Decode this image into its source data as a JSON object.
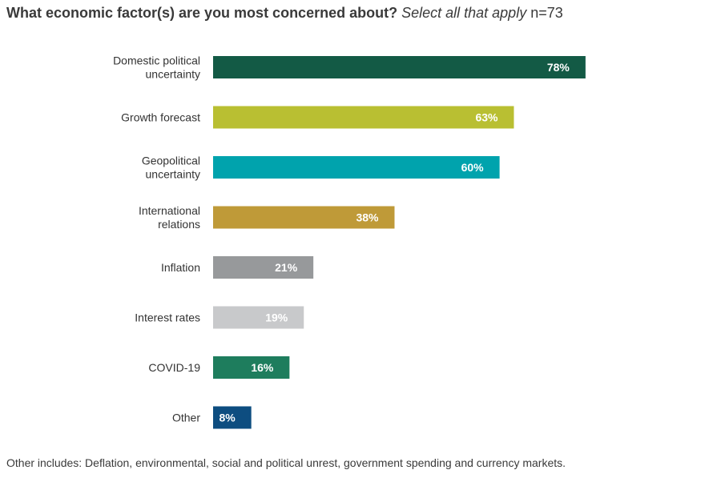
{
  "title": {
    "question": "What economic factor(s) are you most concerned about?",
    "instruction": "Select all that apply",
    "sample": "n=73"
  },
  "footnote": "Other includes: Deflation, environmental, social and political unrest, government spending and currency markets.",
  "chart_data": {
    "type": "bar",
    "orientation": "horizontal",
    "categories": [
      "Domestic political uncertainty",
      "Growth forecast",
      "Geopolitical uncertainty",
      "International relations",
      "Inflation",
      "Interest rates",
      "COVID-19",
      "Other"
    ],
    "category_lines": [
      [
        "Domestic political",
        "uncertainty"
      ],
      [
        "Growth forecast"
      ],
      [
        "Geopolitical",
        "uncertainty"
      ],
      [
        "International",
        "relations"
      ],
      [
        "Inflation"
      ],
      [
        "Interest rates"
      ],
      [
        "COVID-19"
      ],
      [
        "Other"
      ]
    ],
    "values": [
      78,
      63,
      60,
      38,
      21,
      19,
      16,
      8
    ],
    "value_labels": [
      "78%",
      "63%",
      "60%",
      "38%",
      "21%",
      "19%",
      "16%",
      "8%"
    ],
    "colors": [
      "#135a45",
      "#b9bf32",
      "#00a3ad",
      "#bf9a38",
      "#97999b",
      "#c8c9cb",
      "#1e7d5d",
      "#0d4d80"
    ],
    "xlim": [
      0,
      100
    ],
    "grid": false,
    "legend": "none"
  }
}
